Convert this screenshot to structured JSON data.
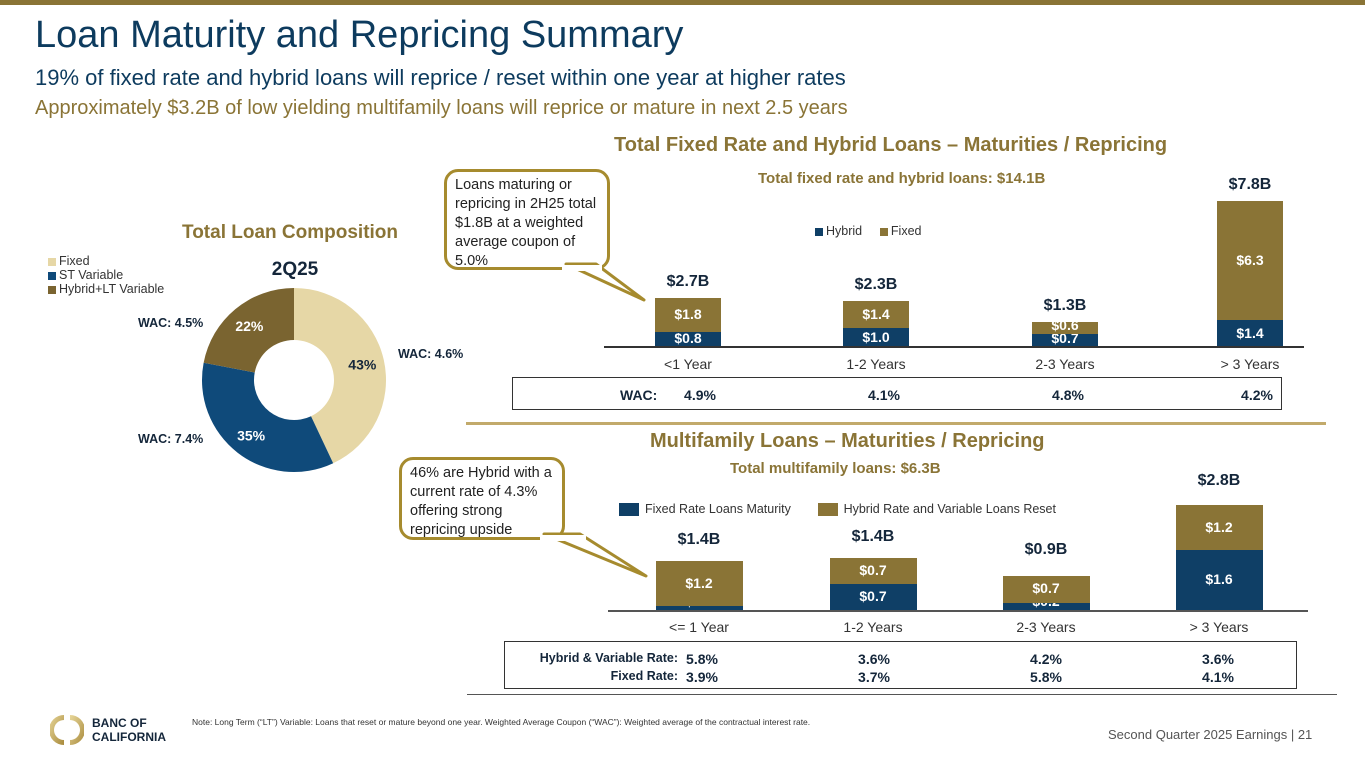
{
  "header": {
    "title": "Loan Maturity and Repricing Summary",
    "subtitle1": "19% of fixed rate and hybrid loans will reprice / reset within one year at higher rates",
    "subtitle2": "Approximately $3.2B of low yielding multifamily loans will reprice or mature in next 2.5 years"
  },
  "colors": {
    "navy": "#0d3b5e",
    "dark_navy": "#0f3f66",
    "gold": "#8a7436",
    "light_gold": "#e6d7a6",
    "hybrid_lt_brown": "#7a6430",
    "callout_border": "#a68b2e"
  },
  "callouts": {
    "top": "Loans maturing or repricing in 2H25 total $1.8B at a weighted average coupon of 5.0%",
    "bottom": "46% are Hybrid with a current rate of 4.3% offering strong repricing upside"
  },
  "chart_data": [
    {
      "type": "pie",
      "title": "Total Loan Composition",
      "subtitle": "2Q25",
      "donut": true,
      "legend_position": "top-left",
      "slices": [
        {
          "name": "Fixed",
          "value": 43,
          "label": "43%",
          "wac": "WAC: 4.6%",
          "color": "#e6d7a6",
          "label_color": "#14263a"
        },
        {
          "name": "ST Variable",
          "value": 35,
          "label": "35%",
          "wac": "WAC: 7.4%",
          "color": "#0f4a7a",
          "label_color": "#ffffff"
        },
        {
          "name": "Hybrid+LT Variable",
          "value": 22,
          "label": "22%",
          "wac": "WAC: 4.5%",
          "color": "#7a6430",
          "label_color": "#ffffff"
        }
      ]
    },
    {
      "type": "bar",
      "stacked": true,
      "title": "Total Fixed Rate and Hybrid Loans – Maturities / Repricing",
      "subtitle": "Total fixed rate and hybrid loans: $14.1B",
      "legend_position": "top-center",
      "categories": [
        "<1 Year",
        "1-2 Years",
        "2-3 Years",
        "> 3 Years"
      ],
      "series": [
        {
          "name": "Hybrid",
          "color": "#0f3f66",
          "values": [
            0.8,
            1.0,
            0.7,
            1.4
          ],
          "labels": [
            "$0.8",
            "$1.0",
            "$0.7",
            "$1.4"
          ]
        },
        {
          "name": "Fixed",
          "color": "#8a7436",
          "values": [
            1.8,
            1.4,
            0.6,
            6.3
          ],
          "labels": [
            "$1.8",
            "$1.4",
            "$0.6",
            "$6.3"
          ]
        }
      ],
      "totals": [
        "$2.7B",
        "$2.3B",
        "$1.3B",
        "$7.8B"
      ],
      "ylim": [
        0,
        7.8
      ],
      "table": {
        "rows": [
          {
            "label": "WAC:",
            "values": [
              "4.9%",
              "4.1%",
              "4.8%",
              "4.2%"
            ]
          }
        ]
      }
    },
    {
      "type": "bar",
      "stacked": true,
      "title": "Multifamily Loans – Maturities / Repricing",
      "subtitle": "Total multifamily loans: $6.3B",
      "legend_position": "top-center",
      "categories": [
        "<= 1 Year",
        "1-2 Years",
        "2-3 Years",
        "> 3 Years"
      ],
      "series": [
        {
          "name": "Fixed Rate Loans Maturity",
          "color": "#0f3f66",
          "values": [
            0.1,
            0.7,
            0.2,
            1.6
          ],
          "labels": [
            "$0.1",
            "$0.7",
            "$0.2",
            "$1.6"
          ]
        },
        {
          "name": "Hybrid Rate and Variable Loans Reset",
          "color": "#8a7436",
          "values": [
            1.2,
            0.7,
            0.7,
            1.2
          ],
          "labels": [
            "$1.2",
            "$0.7",
            "$0.7",
            "$1.2"
          ]
        }
      ],
      "totals": [
        "$1.4B",
        "$1.4B",
        "$0.9B",
        "$2.8B"
      ],
      "ylim": [
        0,
        2.8
      ],
      "table": {
        "rows": [
          {
            "label": "Hybrid & Variable Rate:",
            "values": [
              "5.8%",
              "3.6%",
              "4.2%",
              "3.6%"
            ]
          },
          {
            "label": "Fixed Rate:",
            "values": [
              "3.9%",
              "3.7%",
              "5.8%",
              "4.1%"
            ]
          }
        ]
      }
    }
  ],
  "footer": {
    "logo_line1": "BANC OF",
    "logo_line2": "CALIFORNIA",
    "note": "Note: Long Term (“LT”) Variable: Loans that reset or mature beyond one year. Weighted Average Coupon (“WAC”): Weighted average of the contractual interest rate.",
    "page_label": "Second Quarter 2025 Earnings |  21"
  }
}
